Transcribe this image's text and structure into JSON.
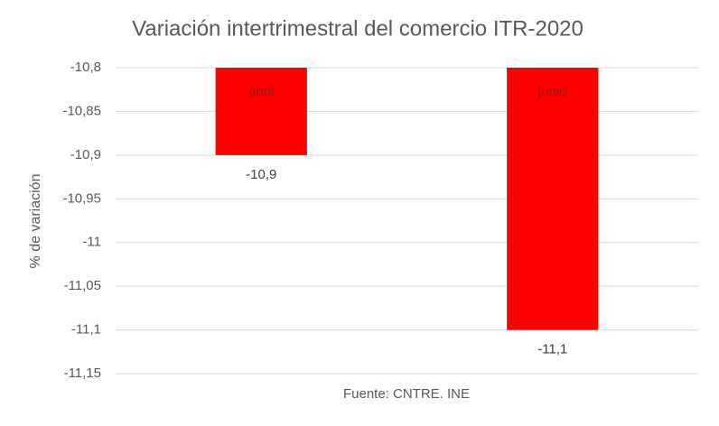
{
  "chart_data": {
    "type": "bar",
    "title": "Variación intertrimestral del comercio ITR-2020",
    "categories": [
      "abril",
      "junio"
    ],
    "values": [
      -10.9,
      -11.1
    ],
    "value_labels": [
      "-10,9",
      "-11,1"
    ],
    "color": "#ff0000",
    "y_label": "% de variación",
    "x_label": "Fuente: CNTRE. INE",
    "ylim": [
      -11.15,
      -10.8
    ],
    "yticks": [
      {
        "value": -11.15,
        "label": "-11,15"
      },
      {
        "value": -11.1,
        "label": "-11,1"
      },
      {
        "value": -11.05,
        "label": "-11,05"
      },
      {
        "value": -11,
        "label": "-11"
      },
      {
        "value": -10.95,
        "label": "-10,95"
      },
      {
        "value": -10.9,
        "label": "-10,9"
      },
      {
        "value": -10.85,
        "label": "-10,85"
      },
      {
        "value": -10.8,
        "label": "-10,8"
      }
    ],
    "grid": true
  }
}
